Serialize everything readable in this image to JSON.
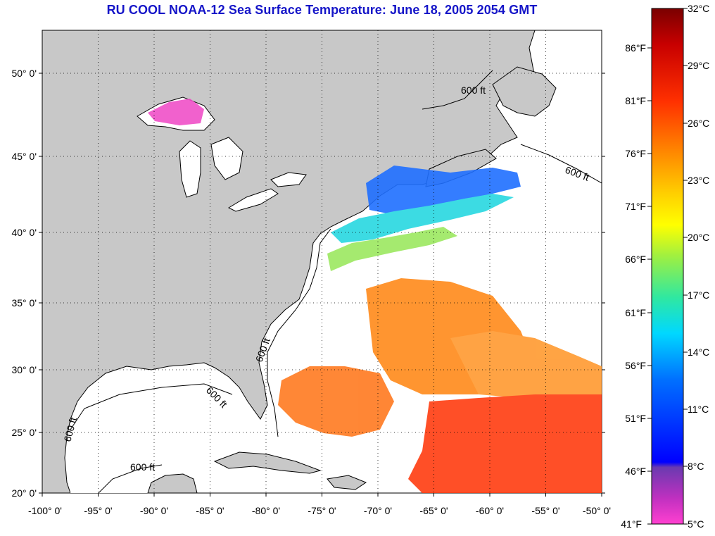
{
  "title": "RU COOL  NOAA-12  Sea Surface Temperature:  June 18, 2005 2054 GMT",
  "map": {
    "lat_labels": [
      "50° 0'",
      "45° 0'",
      "40° 0'",
      "35° 0'",
      "30° 0'",
      "25° 0'",
      "20° 0'"
    ],
    "lon_labels": [
      "-100° 0'",
      "-95° 0'",
      "-90° 0'",
      "-85° 0'",
      "-80° 0'",
      "-75° 0'",
      "-70° 0'",
      "-65° 0'",
      "-60° 0'",
      "-55° 0'",
      "-50° 0'"
    ],
    "contour_label": "600 ft",
    "colors": {
      "land": "#c8c8c8",
      "no_data": "#ffffff",
      "coastline": "#000000"
    }
  },
  "colorbar": {
    "celsius": [
      "32°C",
      "29°C",
      "26°C",
      "23°C",
      "20°C",
      "17°C",
      "14°C",
      "11°C",
      "8°C",
      "5°C"
    ],
    "fahrenheit": [
      "86°F",
      "81°F",
      "76°F",
      "71°F",
      "66°F",
      "61°F",
      "56°F",
      "51°F",
      "46°F",
      "41°F"
    ],
    "gradient": [
      "#7a0000",
      "#d00000",
      "#ff3000",
      "#ff7800",
      "#ffb000",
      "#ffff00",
      "#90f040",
      "#00f0b0",
      "#00d8ff",
      "#0080ff",
      "#0000ff",
      "#6a3ab0",
      "#c030c0",
      "#ff40d0"
    ]
  }
}
